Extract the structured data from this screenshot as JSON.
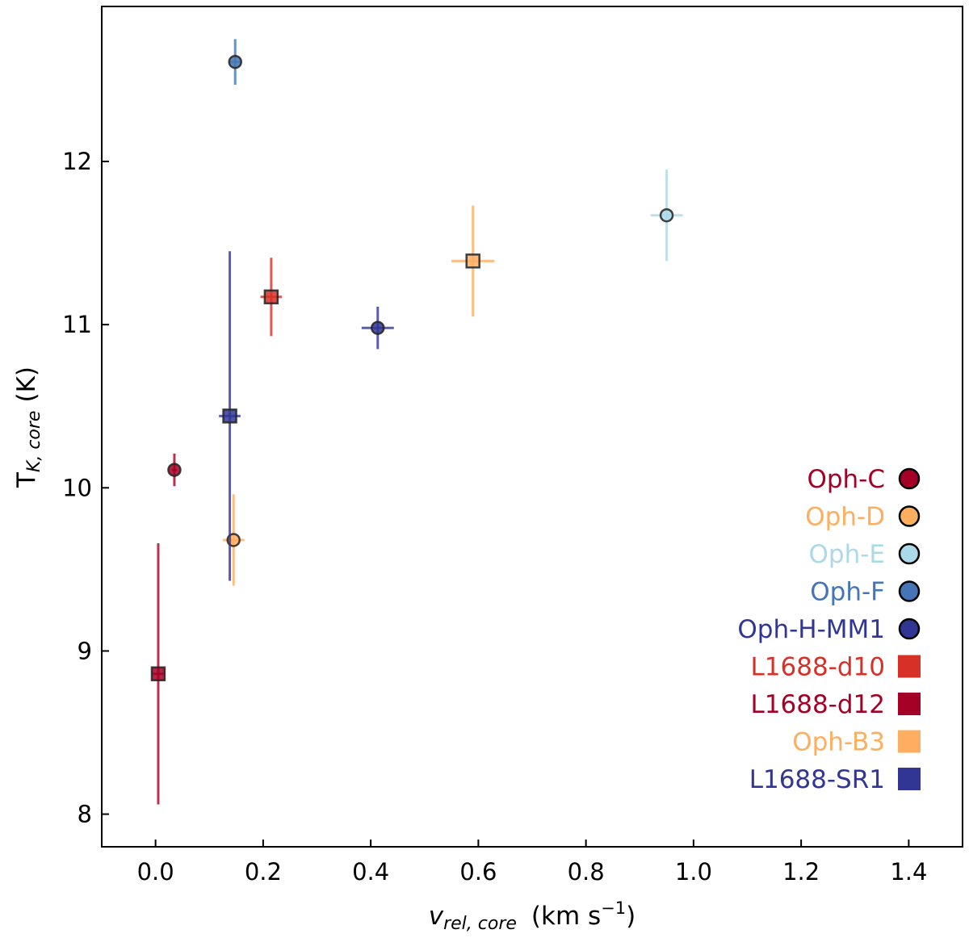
{
  "chart_data": {
    "type": "scatter",
    "xlabel": {
      "main": "v",
      "sub": "rel, core",
      "units": "(km s",
      "exp": "−1",
      "close": ")"
    },
    "ylabel": {
      "main": "T",
      "sub": "K, core",
      "units": "(K)"
    },
    "xlim": [
      -0.1,
      1.5
    ],
    "ylim": [
      7.8,
      12.95
    ],
    "xticks": [
      0.0,
      0.2,
      0.4,
      0.6,
      0.8,
      1.0,
      1.2,
      1.4
    ],
    "xtick_labels": [
      "0.0",
      "0.2",
      "0.4",
      "0.6",
      "0.8",
      "1.0",
      "1.2",
      "1.4"
    ],
    "yticks": [
      8,
      9,
      10,
      11,
      12
    ],
    "ytick_labels": [
      "8",
      "9",
      "10",
      "11",
      "12"
    ],
    "legend_position": "lower-right",
    "series": [
      {
        "name": "Oph-C",
        "marker": "circle",
        "color": "#a50026",
        "points": [
          {
            "x": 0.035,
            "y": 10.11,
            "xerr": 0.005,
            "yerr": 0.1
          }
        ]
      },
      {
        "name": "Oph-D",
        "marker": "circle",
        "color": "#fdae61",
        "points": [
          {
            "x": 0.145,
            "y": 9.68,
            "xerr": 0.02,
            "yerr": 0.28
          }
        ]
      },
      {
        "name": "Oph-E",
        "marker": "circle",
        "color": "#abd9e9",
        "points": [
          {
            "x": 0.95,
            "y": 11.67,
            "xerr": 0.03,
            "yerr": 0.28
          }
        ]
      },
      {
        "name": "Oph-F",
        "marker": "circle",
        "color": "#4575b4",
        "points": [
          {
            "x": 0.148,
            "y": 12.61,
            "xerr": 0.01,
            "yerr": 0.14
          }
        ]
      },
      {
        "name": "Oph-H-MM1",
        "marker": "circle",
        "color": "#313695",
        "points": [
          {
            "x": 0.413,
            "y": 10.98,
            "xerr": 0.03,
            "yerr": 0.13
          }
        ]
      },
      {
        "name": "L1688-d10",
        "marker": "square",
        "color": "#d73027",
        "points": [
          {
            "x": 0.215,
            "y": 11.17,
            "xerr": 0.02,
            "yerr": 0.24
          }
        ]
      },
      {
        "name": "L1688-d12",
        "marker": "square",
        "color": "#a50026",
        "points": [
          {
            "x": 0.005,
            "y": 8.86,
            "xerr": 0.01,
            "yerr": 0.8
          }
        ]
      },
      {
        "name": "Oph-B3",
        "marker": "square",
        "color": "#fdae61",
        "points": [
          {
            "x": 0.59,
            "y": 11.39,
            "xerr": 0.04,
            "yerr": 0.34
          }
        ]
      },
      {
        "name": "L1688-SR1",
        "marker": "square",
        "color": "#313695",
        "points": [
          {
            "x": 0.138,
            "y": 10.44,
            "xerr": 0.02,
            "yerr": 1.01
          }
        ]
      }
    ]
  }
}
